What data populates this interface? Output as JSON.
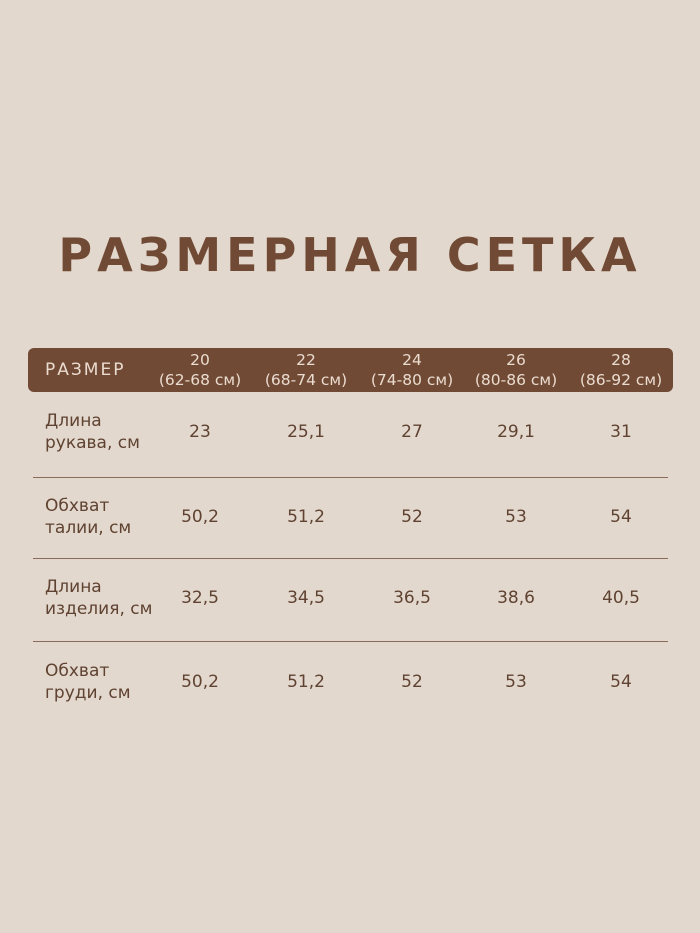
{
  "title": "РАЗМЕРНАЯ СЕТКА",
  "header": {
    "label": "РАЗМЕР",
    "sizes": [
      {
        "size": "20",
        "range": "(62-68 см)"
      },
      {
        "size": "22",
        "range": "(68-74 см)"
      },
      {
        "size": "24",
        "range": "(74-80 см)"
      },
      {
        "size": "26",
        "range": "(80-86 см)"
      },
      {
        "size": "28",
        "range": "(86-92 см)"
      }
    ]
  },
  "rows": [
    {
      "label1": "Длина",
      "label2": "рукава, см",
      "values": [
        "23",
        "25,1",
        "27",
        "29,1",
        "31"
      ]
    },
    {
      "label1": "Обхват",
      "label2": "талии, см",
      "values": [
        "50,2",
        "51,2",
        "52",
        "53",
        "54"
      ]
    },
    {
      "label1": "Длина",
      "label2": "изделия, см",
      "values": [
        "32,5",
        "34,5",
        "36,5",
        "38,6",
        "40,5"
      ]
    },
    {
      "label1": "Обхват",
      "label2": "груди, см",
      "values": [
        "50,2",
        "51,2",
        "52",
        "53",
        "54"
      ]
    }
  ],
  "colors": {
    "background": "#e3d8cd",
    "accent": "#714a35",
    "text": "#5f4231",
    "header_text": "#eadccf"
  }
}
